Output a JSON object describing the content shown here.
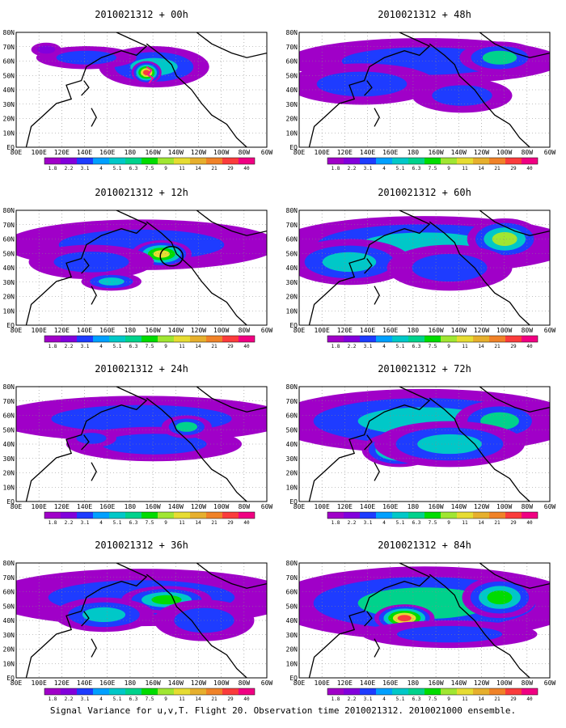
{
  "caption": "Signal Variance for u,v,T. Flight 20. Observation time 2010021312. 2010021000 ensemble.",
  "chart_data": {
    "type": "heatmap",
    "x_ticks": [
      "80E",
      "100E",
      "120E",
      "140E",
      "160E",
      "180",
      "160W",
      "140W",
      "120W",
      "100W",
      "80W",
      "60W"
    ],
    "y_ticks": [
      "EQ",
      "10N",
      "20N",
      "30N",
      "40N",
      "50N",
      "60N",
      "70N",
      "80N"
    ],
    "colorbar": {
      "labels": [
        "1.8",
        "2.2",
        "3.1",
        "4",
        "5.1",
        "6.3",
        "7.5",
        "9",
        "11",
        "14",
        "21",
        "29",
        "40"
      ],
      "colors": [
        "#a000c8",
        "#8200dc",
        "#1e3cff",
        "#00a0ff",
        "#00c8c8",
        "#00d28c",
        "#00dc00",
        "#a0e632",
        "#e6dc32",
        "#e6af2d",
        "#f08228",
        "#fa3c3c",
        "#f00082"
      ]
    },
    "panels": [
      {
        "title": "2010021312 + 00h",
        "lead_hours": 0
      },
      {
        "title": "2010021312 + 48h",
        "lead_hours": 48
      },
      {
        "title": "2010021312 + 12h",
        "lead_hours": 12
      },
      {
        "title": "2010021312 + 60h",
        "lead_hours": 60
      },
      {
        "title": "2010021312 + 24h",
        "lead_hours": 24
      },
      {
        "title": "2010021312 + 72h",
        "lead_hours": 72
      },
      {
        "title": "2010021312 + 36h",
        "lead_hours": 36
      },
      {
        "title": "2010021312 + 84h",
        "lead_hours": 84
      }
    ]
  }
}
